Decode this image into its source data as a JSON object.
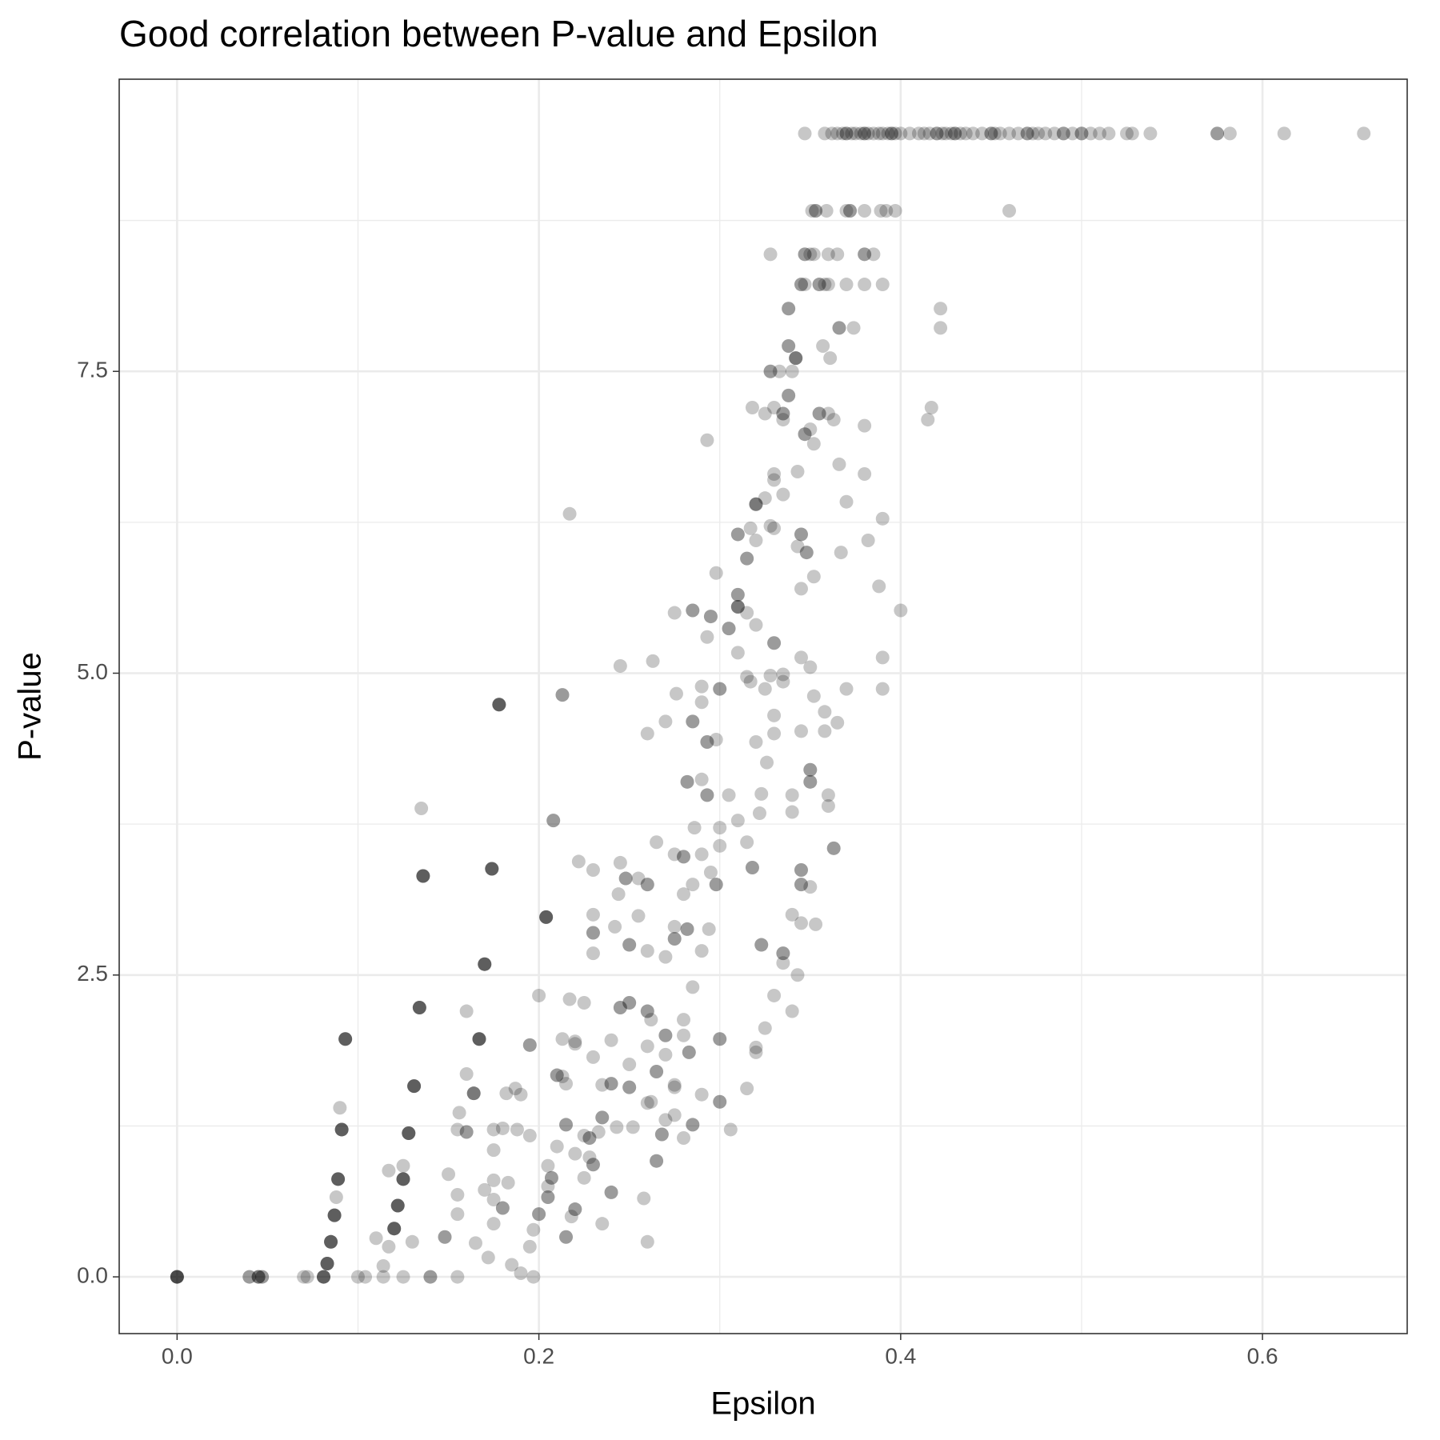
{
  "chart_data": {
    "type": "scatter",
    "title": "Good correlation between P-value and Epsilon",
    "x_label": "Epsilon",
    "y_label": "P-value",
    "color": "#000000",
    "alpha": 0.22,
    "grid": true,
    "xlim": [
      -0.032,
      0.68
    ],
    "ylim": [
      -0.47,
      9.92
    ],
    "xticks": [
      {
        "value": 0,
        "label": "0.0"
      },
      0.2,
      0.4,
      0.6
    ],
    "yticks": [
      {
        "value": 0,
        "label": "0.0"
      },
      2.5,
      {
        "value": 5,
        "label": "5.0"
      },
      7.5
    ],
    "x": [
      0,
      0,
      0,
      0,
      0,
      0.04,
      0.04,
      0.045,
      0.045,
      0.045,
      0.047,
      0.047,
      0.07,
      0.072,
      0.081,
      0.081,
      0.081,
      0.081,
      0.083,
      0.083,
      0.083,
      0.083,
      0.085,
      0.085,
      0.085,
      0.085,
      0.087,
      0.087,
      0.087,
      0.087,
      0.089,
      0.089,
      0.089,
      0.089,
      0.091,
      0.091,
      0.091,
      0.091,
      0.093,
      0.093,
      0.093,
      0.093,
      0.09,
      0.088,
      0.12,
      0.12,
      0.12,
      0.12,
      0.122,
      0.122,
      0.122,
      0.122,
      0.125,
      0.125,
      0.125,
      0.125,
      0.128,
      0.128,
      0.128,
      0.128,
      0.131,
      0.131,
      0.131,
      0.131,
      0.134,
      0.134,
      0.134,
      0.134,
      0.136,
      0.136,
      0.136,
      0.136,
      0.167,
      0.167,
      0.167,
      0.167,
      0.17,
      0.17,
      0.17,
      0.17,
      0.174,
      0.174,
      0.174,
      0.174,
      0.178,
      0.178,
      0.178,
      0.178,
      0.204,
      0.204,
      0.204,
      0.204,
      0.164,
      0.164,
      0.164,
      0.213,
      0.213,
      0.208,
      0.208,
      0.217,
      0.347,
      0.358,
      0.362,
      0.365,
      0.368,
      0.37,
      0.373,
      0.375,
      0.378,
      0.38,
      0.382,
      0.385,
      0.388,
      0.39,
      0.393,
      0.395,
      0.397,
      0.4,
      0.405,
      0.41,
      0.413,
      0.416,
      0.42,
      0.423,
      0.425,
      0.428,
      0.43,
      0.433,
      0.436,
      0.44,
      0.445,
      0.45,
      0.452,
      0.455,
      0.46,
      0.465,
      0.47,
      0.473,
      0.476,
      0.48,
      0.485,
      0.49,
      0.495,
      0.5,
      0.505,
      0.51,
      0.515,
      0.525,
      0.528,
      0.538,
      0.575,
      0.582,
      0.612,
      0.656,
      0.37,
      0.38,
      0.395,
      0.42,
      0.43,
      0.45,
      0.47,
      0.49,
      0.5,
      0.575,
      0.351,
      0.353,
      0.359,
      0.37,
      0.372,
      0.38,
      0.389,
      0.392,
      0.397,
      0.46,
      0.372,
      0.353,
      0.328,
      0.347,
      0.35,
      0.352,
      0.36,
      0.365,
      0.38,
      0.38,
      0.385,
      0.347,
      0.345,
      0.345,
      0.347,
      0.355,
      0.358,
      0.36,
      0.37,
      0.38,
      0.39,
      0.355,
      0.338,
      0.338,
      0.422,
      0.366,
      0.366,
      0.374,
      0.422,
      0.338,
      0.338,
      0.342,
      0.342,
      0.342,
      0.357,
      0.361,
      0.328,
      0.328,
      0.333,
      0.34,
      0.318,
      0.325,
      0.33,
      0.335,
      0.335,
      0.335,
      0.338,
      0.338,
      0.355,
      0.355,
      0.36,
      0.363,
      0.35,
      0.347,
      0.347,
      0.38,
      0.415,
      0.417,
      0.293,
      0.352,
      0.366,
      0.33,
      0.343,
      0.38,
      0.33,
      0.32,
      0.32,
      0.32,
      0.325,
      0.335,
      0.37,
      0.39,
      0.317,
      0.328,
      0.33,
      0.31,
      0.31,
      0.32,
      0.345,
      0.345,
      0.343,
      0.348,
      0.348,
      0.367,
      0.382,
      0.315,
      0.315,
      0.298,
      0.31,
      0.31,
      0.31,
      0.31,
      0.31,
      0.315,
      0.32,
      0.345,
      0.352,
      0.388,
      0.4,
      0.275,
      0.285,
      0.285,
      0.295,
      0.295,
      0.293,
      0.305,
      0.305,
      0.33,
      0.33,
      0.31,
      0.245,
      0.263,
      0.345,
      0.35,
      0.39,
      0.3,
      0.3,
      0.315,
      0.317,
      0.325,
      0.328,
      0.335,
      0.335,
      0.352,
      0.37,
      0.39,
      0.276,
      0.29,
      0.29,
      0.27,
      0.285,
      0.285,
      0.33,
      0.358,
      0.365,
      0.26,
      0.293,
      0.293,
      0.298,
      0.32,
      0.33,
      0.345,
      0.358,
      0.29,
      0.282,
      0.282,
      0.293,
      0.293,
      0.305,
      0.323,
      0.326,
      0.34,
      0.35,
      0.35,
      0.35,
      0.35,
      0.36,
      0.36,
      0.34,
      0.322,
      0.286,
      0.31,
      0.3,
      0.265,
      0.315,
      0.3,
      0.363,
      0.363,
      0.135,
      0.222,
      0.245,
      0.23,
      0.275,
      0.28,
      0.28,
      0.29,
      0.295,
      0.318,
      0.318,
      0.345,
      0.345,
      0.345,
      0.345,
      0.35,
      0.248,
      0.248,
      0.26,
      0.26,
      0.255,
      0.28,
      0.298,
      0.298,
      0.285,
      0.244,
      0.23,
      0.255,
      0.242,
      0.23,
      0.23,
      0.275,
      0.282,
      0.282,
      0.294,
      0.345,
      0.353,
      0.34,
      0.25,
      0.25,
      0.26,
      0.27,
      0.275,
      0.275,
      0.29,
      0.323,
      0.323,
      0.335,
      0.335,
      0.335,
      0.343,
      0.23,
      0.2,
      0.217,
      0.225,
      0.245,
      0.245,
      0.25,
      0.25,
      0.26,
      0.26,
      0.262,
      0.28,
      0.285,
      0.33,
      0.34,
      0.325,
      0.16,
      0.213,
      0.22,
      0.24,
      0.28,
      0.27,
      0.27,
      0.26,
      0.22,
      0.195,
      0.195,
      0.3,
      0.3,
      0.32,
      0.32,
      0.23,
      0.25,
      0.27,
      0.283,
      0.283,
      0.265,
      0.265,
      0.21,
      0.21,
      0.213,
      0.16,
      0.215,
      0.235,
      0.24,
      0.24,
      0.25,
      0.25,
      0.275,
      0.275,
      0.182,
      0.187,
      0.19,
      0.29,
      0.3,
      0.3,
      0.26,
      0.315,
      0.156,
      0.155,
      0.16,
      0.16,
      0.175,
      0.18,
      0.188,
      0.195,
      0.215,
      0.215,
      0.225,
      0.228,
      0.228,
      0.233,
      0.235,
      0.235,
      0.243,
      0.252,
      0.262,
      0.27,
      0.275,
      0.268,
      0.268,
      0.28,
      0.285,
      0.285,
      0.306,
      0.21,
      0.22,
      0.228,
      0.23,
      0.23,
      0.265,
      0.265,
      0.175,
      0.205,
      0.207,
      0.207,
      0.205,
      0.225,
      0.24,
      0.24,
      0.258,
      0.205,
      0.205,
      0.2,
      0.2,
      0.22,
      0.22,
      0.218,
      0.235,
      0.197,
      0.215,
      0.215,
      0.26,
      0.175,
      0.18,
      0.18,
      0.175,
      0.183,
      0.17,
      0.155,
      0.15,
      0.117,
      0.125,
      0.155,
      0.175,
      0.148,
      0.148,
      0.11,
      0.117,
      0.13,
      0.165,
      0.172,
      0.185,
      0.19,
      0.195,
      0.114,
      0.1,
      0.104,
      0.114,
      0.125,
      0.14,
      0.14,
      0.155,
      0.197
    ],
    "values": [
      0,
      0,
      0,
      0,
      0,
      0,
      0,
      0,
      0,
      0,
      0,
      0,
      0,
      0,
      0,
      0,
      0,
      0,
      0.11,
      0.11,
      0.11,
      0.11,
      0.29,
      0.29,
      0.29,
      0.29,
      0.51,
      0.51,
      0.51,
      0.51,
      0.81,
      0.81,
      0.81,
      0.81,
      1.22,
      1.22,
      1.22,
      1.22,
      1.97,
      1.97,
      1.97,
      1.97,
      1.4,
      0.66,
      0.4,
      0.4,
      0.4,
      0.4,
      0.59,
      0.59,
      0.59,
      0.59,
      0.81,
      0.81,
      0.81,
      0.81,
      1.19,
      1.19,
      1.19,
      1.19,
      1.58,
      1.58,
      1.58,
      1.58,
      2.23,
      2.23,
      2.23,
      2.23,
      3.32,
      3.32,
      3.32,
      3.32,
      1.97,
      1.97,
      1.97,
      1.97,
      2.59,
      2.59,
      2.59,
      2.59,
      3.38,
      3.38,
      3.38,
      3.38,
      4.74,
      4.74,
      4.74,
      4.74,
      2.98,
      2.98,
      2.98,
      2.98,
      1.52,
      1.52,
      1.52,
      4.82,
      4.82,
      3.78,
      3.78,
      6.32,
      9.47,
      9.47,
      9.47,
      9.47,
      9.47,
      9.47,
      9.47,
      9.47,
      9.47,
      9.47,
      9.47,
      9.47,
      9.47,
      9.47,
      9.47,
      9.47,
      9.47,
      9.47,
      9.47,
      9.47,
      9.47,
      9.47,
      9.47,
      9.47,
      9.47,
      9.47,
      9.47,
      9.47,
      9.47,
      9.47,
      9.47,
      9.47,
      9.47,
      9.47,
      9.47,
      9.47,
      9.47,
      9.47,
      9.47,
      9.47,
      9.47,
      9.47,
      9.47,
      9.47,
      9.47,
      9.47,
      9.47,
      9.47,
      9.47,
      9.47,
      9.47,
      9.47,
      9.47,
      9.47,
      9.47,
      9.47,
      9.47,
      9.47,
      9.47,
      9.47,
      9.47,
      9.47,
      9.47,
      9.47,
      8.83,
      8.83,
      8.83,
      8.83,
      8.83,
      8.83,
      8.83,
      8.83,
      8.83,
      8.83,
      8.83,
      8.83,
      8.47,
      8.47,
      8.47,
      8.47,
      8.47,
      8.47,
      8.47,
      8.47,
      8.47,
      8.47,
      8.22,
      8.22,
      8.22,
      8.22,
      8.22,
      8.22,
      8.22,
      8.22,
      8.22,
      8.22,
      8.02,
      8.02,
      8.02,
      7.86,
      7.86,
      7.86,
      7.86,
      7.71,
      7.71,
      7.61,
      7.61,
      7.61,
      7.71,
      7.61,
      7.5,
      7.5,
      7.5,
      7.5,
      7.2,
      7.15,
      7.2,
      7.15,
      7.15,
      7.1,
      7.3,
      7.3,
      7.15,
      7.15,
      7.15,
      7.1,
      7.02,
      6.98,
      6.98,
      7.05,
      7.1,
      7.2,
      6.93,
      6.9,
      6.73,
      6.65,
      6.67,
      6.65,
      6.6,
      6.4,
      6.4,
      6.4,
      6.45,
      6.48,
      6.42,
      6.28,
      6.2,
      6.22,
      6.2,
      6.15,
      6.15,
      6.1,
      6.15,
      6.15,
      6.05,
      6.0,
      6.0,
      6.0,
      6.1,
      5.95,
      5.95,
      5.83,
      5.65,
      5.65,
      5.55,
      5.55,
      5.55,
      5.5,
      5.4,
      5.7,
      5.8,
      5.72,
      5.52,
      5.5,
      5.52,
      5.52,
      5.47,
      5.47,
      5.3,
      5.37,
      5.37,
      5.25,
      5.25,
      5.17,
      5.06,
      5.1,
      5.13,
      5.05,
      5.13,
      4.87,
      4.87,
      4.97,
      4.93,
      4.87,
      4.98,
      4.93,
      4.99,
      4.81,
      4.87,
      4.87,
      4.83,
      4.89,
      4.76,
      4.6,
      4.6,
      4.6,
      4.65,
      4.68,
      4.59,
      4.5,
      4.43,
      4.43,
      4.45,
      4.43,
      4.5,
      4.52,
      4.52,
      4.12,
      4.1,
      4.1,
      3.99,
      3.99,
      3.99,
      4.0,
      4.26,
      3.99,
      4.2,
      4.2,
      4.1,
      4.1,
      3.99,
      3.9,
      3.85,
      3.84,
      3.72,
      3.78,
      3.72,
      3.6,
      3.6,
      3.57,
      3.55,
      3.55,
      3.88,
      3.44,
      3.43,
      3.37,
      3.5,
      3.48,
      3.48,
      3.5,
      3.35,
      3.39,
      3.39,
      3.37,
      3.37,
      3.25,
      3.25,
      3.23,
      3.3,
      3.3,
      3.25,
      3.25,
      3.3,
      3.17,
      3.25,
      3.25,
      3.25,
      3.17,
      3.0,
      2.99,
      2.9,
      2.85,
      2.85,
      2.9,
      2.88,
      2.88,
      2.88,
      2.93,
      2.92,
      3.0,
      2.75,
      2.75,
      2.7,
      2.65,
      2.8,
      2.8,
      2.7,
      2.75,
      2.75,
      2.68,
      2.68,
      2.6,
      2.5,
      2.68,
      2.33,
      2.3,
      2.27,
      2.23,
      2.23,
      2.27,
      2.27,
      2.2,
      2.2,
      2.13,
      2.13,
      2.4,
      2.33,
      2.2,
      2.06,
      2.2,
      1.97,
      1.95,
      1.96,
      2.0,
      2.0,
      2.0,
      1.91,
      1.93,
      1.92,
      1.92,
      1.97,
      1.97,
      1.9,
      1.86,
      1.82,
      1.76,
      1.84,
      1.86,
      1.86,
      1.7,
      1.7,
      1.67,
      1.67,
      1.66,
      1.68,
      1.6,
      1.59,
      1.6,
      1.6,
      1.57,
      1.57,
      1.57,
      1.59,
      1.52,
      1.56,
      1.51,
      1.51,
      1.45,
      1.45,
      1.44,
      1.56,
      1.36,
      1.22,
      1.2,
      1.2,
      1.22,
      1.23,
      1.22,
      1.17,
      1.26,
      1.26,
      1.17,
      1.15,
      1.15,
      1.2,
      1.32,
      1.32,
      1.24,
      1.24,
      1.45,
      1.3,
      1.34,
      1.18,
      1.18,
      1.15,
      1.26,
      1.26,
      1.22,
      1.08,
      1.02,
      0.99,
      0.93,
      0.93,
      0.96,
      0.96,
      1.05,
      0.92,
      0.82,
      0.82,
      0.75,
      0.82,
      0.7,
      0.7,
      0.65,
      0.66,
      0.66,
      0.52,
      0.52,
      0.56,
      0.56,
      0.5,
      0.44,
      0.39,
      0.33,
      0.33,
      0.29,
      0.64,
      0.57,
      0.57,
      0.8,
      0.78,
      0.72,
      0.68,
      0.85,
      0.88,
      0.92,
      0.52,
      0.44,
      0.33,
      0.33,
      0.32,
      0.25,
      0.29,
      0.28,
      0.16,
      0.1,
      0.03,
      0.25,
      0.09,
      0,
      0,
      0,
      0,
      0,
      0,
      0,
      0
    ]
  }
}
